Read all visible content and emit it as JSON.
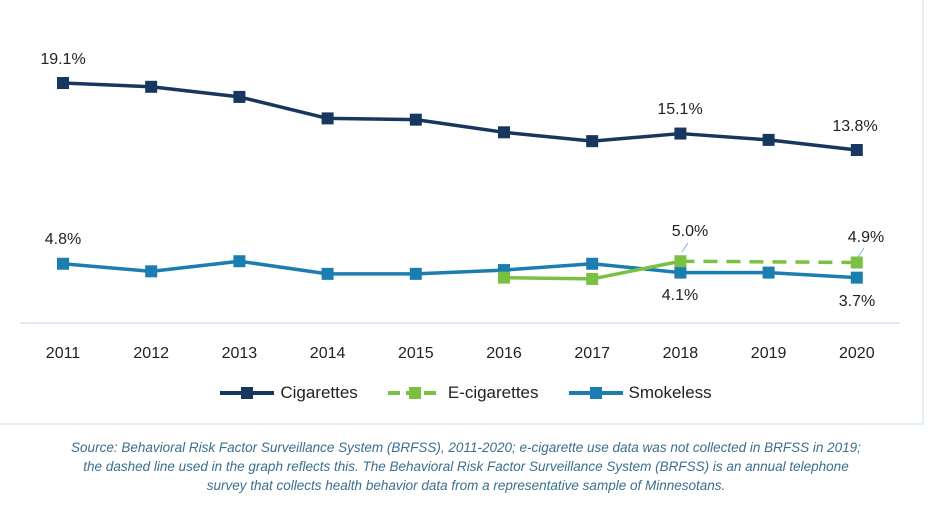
{
  "chart_data": {
    "type": "line",
    "categories": [
      "2011",
      "2012",
      "2013",
      "2014",
      "2015",
      "2016",
      "2017",
      "2018",
      "2019",
      "2020"
    ],
    "ylim": [
      0,
      21
    ],
    "grid": false,
    "legend_position": "bottom",
    "series": [
      {
        "name": "Cigarettes",
        "color": "#17375e",
        "style": "solid",
        "values": [
          19.1,
          18.8,
          18.0,
          16.3,
          16.2,
          15.2,
          14.5,
          15.1,
          14.6,
          13.8
        ]
      },
      {
        "name": "E-cigarettes",
        "color": "#7ac143",
        "style": "solid; dashed 2018-2020 (2019 not collected)",
        "values": [
          null,
          null,
          null,
          null,
          null,
          3.7,
          3.6,
          5.0,
          null,
          4.9
        ]
      },
      {
        "name": "Smokeless",
        "color": "#1b7db0",
        "style": "solid",
        "values": [
          4.8,
          4.2,
          5.0,
          4.0,
          4.0,
          4.3,
          4.8,
          4.1,
          4.1,
          3.7
        ]
      }
    ],
    "data_labels": [
      {
        "series": "Cigarettes",
        "x": "2011",
        "text": "19.1%"
      },
      {
        "series": "Cigarettes",
        "x": "2018",
        "text": "15.1%"
      },
      {
        "series": "Cigarettes",
        "x": "2020",
        "text": "13.8%"
      },
      {
        "series": "Smokeless",
        "x": "2011",
        "text": "4.8%"
      },
      {
        "series": "E-cigarettes",
        "x": "2018",
        "text": "5.0%"
      },
      {
        "series": "Smokeless",
        "x": "2018",
        "text": "4.1%"
      },
      {
        "series": "E-cigarettes",
        "x": "2020",
        "text": "4.9%"
      },
      {
        "series": "Smokeless",
        "x": "2020",
        "text": "3.7%"
      }
    ]
  },
  "legend": {
    "items": [
      "Cigarettes",
      "E-cigarettes",
      "Smokeless"
    ]
  },
  "source": {
    "line1": "Source: Behavioral Risk Factor Surveillance System (BRFSS), 2011-2020; e-cigarette use data was not collected in BRFSS in 2019;",
    "line2": "the dashed line used in the graph reflects this. The Behavioral Risk Factor Surveillance System (BRFSS) is an annual telephone",
    "line3": "survey that collects health behavior data from a representative sample of Minnesotans."
  }
}
